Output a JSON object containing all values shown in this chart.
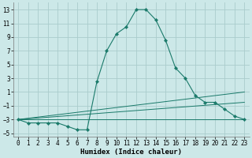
{
  "xlabel": "Humidex (Indice chaleur)",
  "background_color": "#cce8e8",
  "grid_color": "#aacccc",
  "line_color": "#1a7a6a",
  "main_series_x": [
    0,
    1,
    2,
    3,
    4,
    5,
    6,
    7,
    8,
    9,
    10,
    11,
    12,
    13,
    14,
    15,
    16,
    17,
    18,
    19,
    20,
    21,
    22,
    23
  ],
  "main_series_y": [
    -3,
    -3.5,
    -3.5,
    -3.5,
    -3.5,
    -4,
    -4.5,
    -4.5,
    2.5,
    7,
    9.5,
    10.5,
    13,
    13,
    11.5,
    8.5,
    4.5,
    3,
    0.5,
    -0.5,
    -0.5,
    -1.5,
    -2.5,
    -3
  ],
  "extra_lines": [
    {
      "x": [
        0,
        23
      ],
      "y": [
        -3,
        -3
      ]
    },
    {
      "x": [
        0,
        23
      ],
      "y": [
        -3,
        -0.5
      ]
    },
    {
      "x": [
        0,
        23
      ],
      "y": [
        -3,
        1.0
      ]
    }
  ],
  "xlim": [
    -0.5,
    23.5
  ],
  "ylim": [
    -5.5,
    14.0
  ],
  "xticks": [
    0,
    1,
    2,
    3,
    4,
    5,
    6,
    7,
    8,
    9,
    10,
    11,
    12,
    13,
    14,
    15,
    16,
    17,
    18,
    19,
    20,
    21,
    22,
    23
  ],
  "yticks": [
    -5,
    -3,
    -1,
    1,
    3,
    5,
    7,
    9,
    11,
    13
  ],
  "tick_fontsize": 5.5,
  "xlabel_fontsize": 6.5
}
